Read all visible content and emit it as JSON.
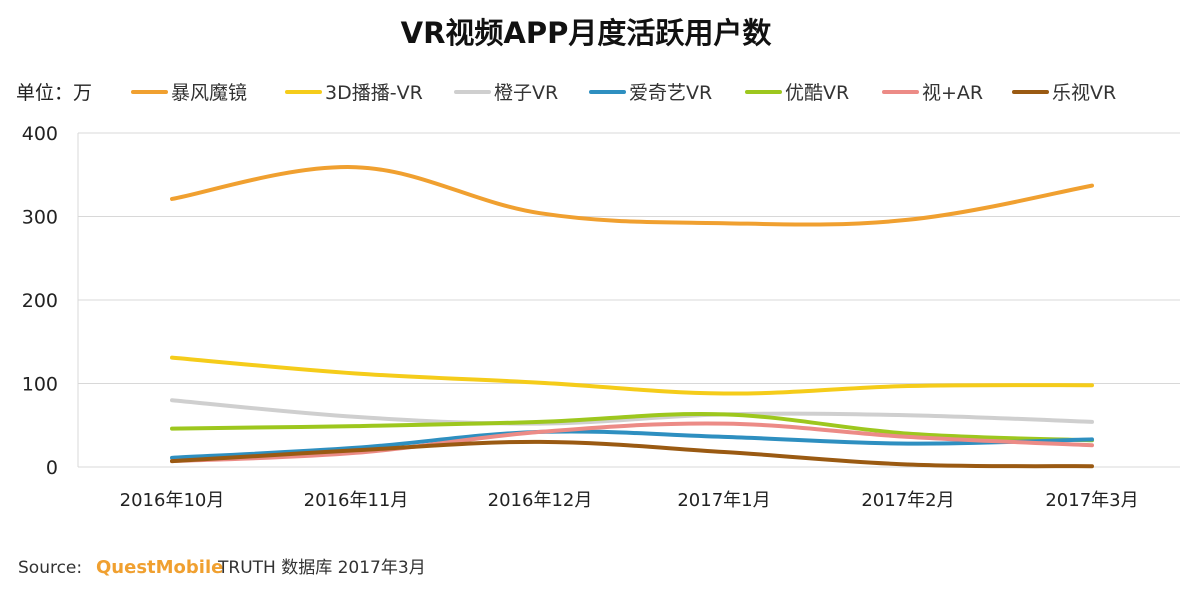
{
  "chart_data": {
    "type": "line",
    "title": "VR视频APP月度活跃用户数",
    "unit_label": "单位：万",
    "categories": [
      "2016年10月",
      "2016年11月",
      "2016年12月",
      "2017年1月",
      "2017年2月",
      "2017年3月"
    ],
    "ylim": [
      0,
      400
    ],
    "yticks": [
      "0",
      "100",
      "200",
      "300",
      "400"
    ],
    "grid": true,
    "legend_position": "top",
    "series": [
      {
        "name": "暴风魔镜",
        "color": "#f0a030",
        "values": [
          321,
          359,
          304,
          292,
          296,
          337
        ]
      },
      {
        "name": "3D播播-VR",
        "color": "#f5cc1a",
        "values": [
          131,
          112,
          101,
          88,
          97,
          98
        ]
      },
      {
        "name": "橙子VR",
        "color": "#cfcfcf",
        "values": [
          80,
          60,
          52,
          63,
          62,
          54
        ]
      },
      {
        "name": "爱奇艺VR",
        "color": "#2e8fc0",
        "values": [
          11,
          23,
          42,
          36,
          28,
          33
        ]
      },
      {
        "name": "优酷VR",
        "color": "#9dc71e",
        "values": [
          46,
          49,
          54,
          63,
          40,
          32
        ]
      },
      {
        "name": "视+AR",
        "color": "#ec8b86",
        "values": [
          7,
          17,
          42,
          52,
          36,
          26
        ]
      },
      {
        "name": "乐视VR",
        "color": "#9a5a12",
        "values": [
          7,
          20,
          30,
          18,
          3,
          1
        ]
      }
    ]
  },
  "source": {
    "label": "Source:",
    "brand": "QuestMobile",
    "text": "TRUTH 数据库 2017年3月"
  }
}
